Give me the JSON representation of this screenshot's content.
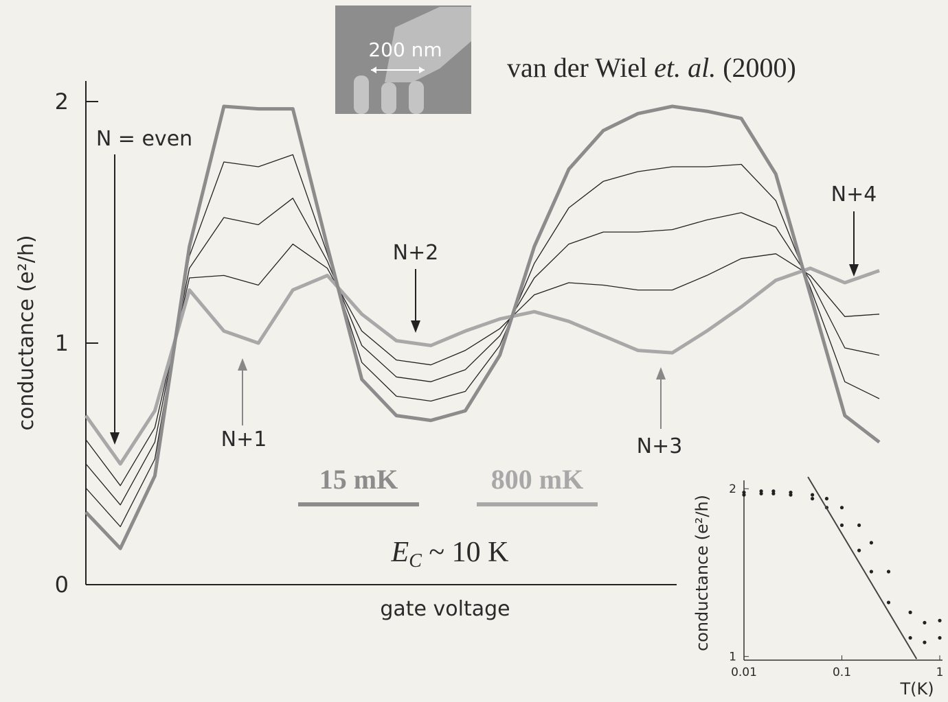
{
  "chart_data": [
    {
      "type": "line",
      "citation": [
        "van der Wiel ",
        "et. al.",
        " (2000)"
      ],
      "image_label": "200 nm",
      "y_label": "conductance (e²/h)",
      "x_label": "gate voltage",
      "ylim": [
        0,
        2
      ],
      "yticks": [
        0,
        1,
        2
      ],
      "annotations": [
        "N = even",
        "N+1",
        "N+2",
        "N+3",
        "N+4"
      ],
      "energy_label": [
        "E",
        "C",
        " ~ 10 K"
      ],
      "series": [
        {
          "name": "15 mK",
          "color": "#8c8c8c",
          "values": [
            0.3,
            0.15,
            0.45,
            1.4,
            1.98,
            1.97,
            1.97,
            1.4,
            0.85,
            0.7,
            0.68,
            0.72,
            0.95,
            1.4,
            1.72,
            1.88,
            1.95,
            1.98,
            1.96,
            1.93,
            1.7,
            1.2,
            0.7,
            0.59
          ]
        },
        {
          "color": "#222222",
          "values": [
            0.4,
            0.24,
            0.52,
            1.36,
            1.75,
            1.73,
            1.78,
            1.37,
            0.92,
            0.78,
            0.76,
            0.8,
            0.99,
            1.33,
            1.56,
            1.67,
            1.71,
            1.73,
            1.73,
            1.74,
            1.59,
            1.23,
            0.84,
            0.77
          ]
        },
        {
          "color": "#222222",
          "values": [
            0.5,
            0.33,
            0.59,
            1.31,
            1.52,
            1.49,
            1.6,
            1.34,
            0.99,
            0.86,
            0.84,
            0.89,
            1.03,
            1.27,
            1.41,
            1.46,
            1.46,
            1.47,
            1.51,
            1.54,
            1.48,
            1.26,
            0.98,
            0.95
          ]
        },
        {
          "color": "#222222",
          "values": [
            0.6,
            0.41,
            0.65,
            1.27,
            1.28,
            1.24,
            1.41,
            1.31,
            1.05,
            0.93,
            0.91,
            0.97,
            1.06,
            1.2,
            1.25,
            1.24,
            1.22,
            1.22,
            1.28,
            1.35,
            1.37,
            1.28,
            1.11,
            1.12
          ]
        },
        {
          "name": "800 mK",
          "color": "#a8a8a8",
          "values": [
            0.7,
            0.5,
            0.72,
            1.22,
            1.05,
            1.0,
            1.22,
            1.28,
            1.12,
            1.01,
            0.99,
            1.05,
            1.1,
            1.13,
            1.09,
            1.03,
            0.97,
            0.96,
            1.05,
            1.15,
            1.26,
            1.31,
            1.25,
            1.3
          ]
        }
      ]
    },
    {
      "type": "scatter",
      "log_x": true,
      "log_y": true,
      "y_label": "conductance (e²/h)",
      "x_label": "T(K)",
      "xlim": [
        0.01,
        1
      ],
      "xticks": [
        0.01,
        0.1,
        1
      ],
      "ylim": [
        0.985,
        2.13
      ],
      "yticks": [
        1,
        2
      ],
      "x": [
        0.01,
        0.015,
        0.02,
        0.03,
        0.05,
        0.07,
        0.1,
        0.15,
        0.2,
        0.3,
        0.5,
        0.7,
        1
      ],
      "series": [
        {
          "mode": "markers",
          "color": "#222222",
          "values": [
            1.97,
            1.98,
            1.98,
            1.97,
            1.95,
            1.92,
            1.85,
            1.72,
            1.6,
            1.42,
            1.2,
            1.15,
            1.16
          ]
        },
        {
          "mode": "markers",
          "color": "#222222",
          "values": [
            1.95,
            1.96,
            1.96,
            1.95,
            1.92,
            1.85,
            1.72,
            1.55,
            1.42,
            1.25,
            1.08,
            1.06,
            1.08
          ]
        },
        {
          "mode": "line",
          "color": "#444444",
          "x": [
            0.045,
            0.58
          ],
          "values": [
            2.1,
            0.99
          ]
        }
      ]
    }
  ]
}
